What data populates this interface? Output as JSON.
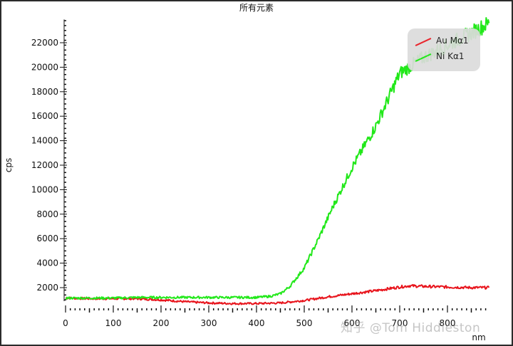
{
  "chart_data": {
    "type": "line",
    "title": "所有元素",
    "xlabel": "nm",
    "ylabel": "cps",
    "xlim": [
      0,
      887
    ],
    "ylim": [
      900,
      23900
    ],
    "x_ticks": [
      0,
      100,
      200,
      300,
      400,
      500,
      600,
      700,
      800
    ],
    "x_tick_labels": [
      "0",
      "100",
      "200",
      "300",
      "400",
      "500",
      "600",
      "700",
      "800"
    ],
    "y_ticks": [
      2000,
      4000,
      6000,
      8000,
      10000,
      12000,
      14000,
      16000,
      18000,
      20000,
      22000
    ],
    "y_tick_labels": [
      "2000",
      "4000",
      "6000",
      "8000",
      "10000",
      "12000",
      "14000",
      "16000",
      "18000",
      "20000",
      "22000"
    ],
    "grid": false,
    "legend_position": "upper right",
    "series": [
      {
        "name": "Au Mα1",
        "color": "#e8141c",
        "x": [
          0,
          50,
          100,
          150,
          200,
          250,
          300,
          350,
          400,
          450,
          500,
          550,
          600,
          650,
          700,
          720,
          750,
          800,
          850,
          887
        ],
        "values": [
          1150,
          1100,
          1100,
          1100,
          1000,
          850,
          750,
          700,
          700,
          750,
          950,
          1250,
          1500,
          1750,
          2050,
          2150,
          2100,
          2050,
          2000,
          2000
        ]
      },
      {
        "name": "Ni Kα1",
        "color": "#22e81a",
        "x": [
          0,
          50,
          100,
          150,
          200,
          250,
          300,
          350,
          400,
          430,
          450,
          470,
          500,
          530,
          560,
          600,
          650,
          700,
          750,
          800,
          850,
          887
        ],
        "values": [
          1150,
          1150,
          1150,
          1200,
          1200,
          1200,
          1200,
          1200,
          1200,
          1300,
          1500,
          2100,
          3600,
          6000,
          8600,
          11800,
          15200,
          19500,
          20800,
          21800,
          22800,
          23600
        ]
      }
    ]
  },
  "legend": {
    "items": [
      {
        "label": "Au Mα1",
        "color": "#e8141c"
      },
      {
        "label": "Ni Kα1",
        "color": "#22e81a"
      }
    ]
  },
  "watermark": "知乎 @Tom Hiddleston"
}
